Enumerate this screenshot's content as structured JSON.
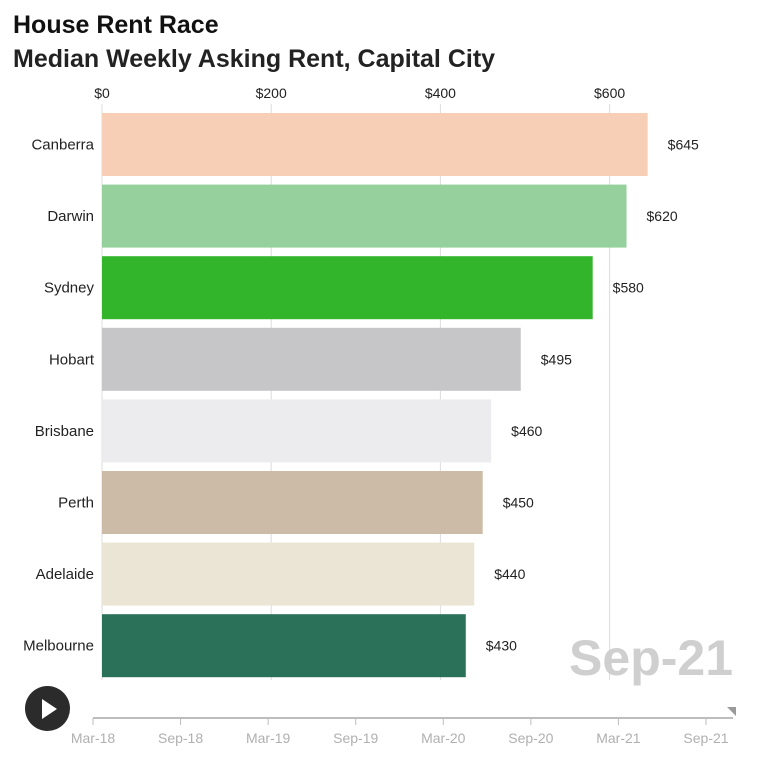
{
  "title": "House Rent Race",
  "subtitle": "Median Weekly Asking Rent, Capital City",
  "colors": {
    "grid": "#dcdcdc",
    "axis_text": "#222222",
    "date_watermark": "#cfcfcf",
    "timeline": "#bdbdbd",
    "timeline_text": "#b0b0b0"
  },
  "chart_data": {
    "type": "bar",
    "orientation": "horizontal",
    "categories": [
      "Canberra",
      "Darwin",
      "Sydney",
      "Hobart",
      "Brisbane",
      "Perth",
      "Adelaide",
      "Melbourne"
    ],
    "values": [
      645,
      620,
      580,
      495,
      460,
      450,
      440,
      430
    ],
    "value_labels": [
      "$645",
      "$620",
      "$580",
      "$495",
      "$460",
      "$450",
      "$440",
      "$430"
    ],
    "bar_colors": [
      "#f7cfb6",
      "#96d09c",
      "#33b52b",
      "#c6c6c8",
      "#ececee",
      "#ccbba6",
      "#ebe5d6",
      "#2b715a"
    ],
    "x_ticks": [
      0,
      200,
      400,
      600
    ],
    "x_tick_labels": [
      "$0",
      "$200",
      "$400",
      "$600"
    ],
    "xlim": [
      0,
      700
    ],
    "grid": true,
    "current_date": "Sep-21"
  },
  "timeline": {
    "labels": [
      "Mar-18",
      "Sep-18",
      "Mar-19",
      "Sep-19",
      "Mar-20",
      "Sep-20",
      "Mar-21",
      "Sep-21"
    ],
    "current_index": 7
  },
  "controls": {
    "play_icon": "play-icon"
  }
}
